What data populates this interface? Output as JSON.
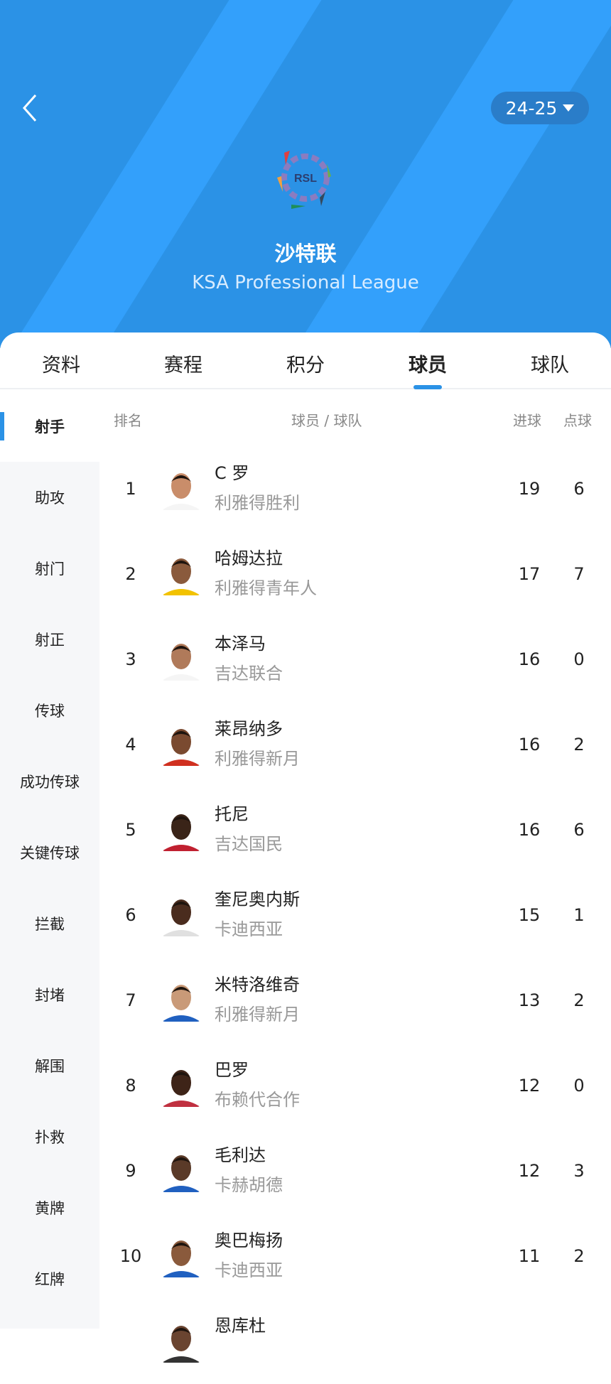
{
  "header": {
    "season": "24-25",
    "league_cn": "沙特联",
    "league_en": "KSA Professional League",
    "logo_text": "RSL"
  },
  "tabs": [
    "资料",
    "赛程",
    "积分",
    "球员",
    "球队"
  ],
  "active_tab": 3,
  "sidebar": [
    "射手",
    "助攻",
    "射门",
    "射正",
    "传球",
    "成功传球",
    "关键传球",
    "拦截",
    "封堵",
    "解围",
    "扑救",
    "黄牌",
    "红牌"
  ],
  "columns": {
    "rank": "排名",
    "player_team": "球员 / 球队",
    "goals": "进球",
    "penalties": "点球"
  },
  "rows": [
    {
      "rank": "1",
      "name": "C 罗",
      "team": "利雅得胜利",
      "goals": "19",
      "penalties": "6"
    },
    {
      "rank": "2",
      "name": "哈姆达拉",
      "team": "利雅得青年人",
      "goals": "17",
      "penalties": "7"
    },
    {
      "rank": "3",
      "name": "本泽马",
      "team": "吉达联合",
      "goals": "16",
      "penalties": "0"
    },
    {
      "rank": "4",
      "name": "莱昂纳多",
      "team": "利雅得新月",
      "goals": "16",
      "penalties": "2"
    },
    {
      "rank": "5",
      "name": "托尼",
      "team": "吉达国民",
      "goals": "16",
      "penalties": "6"
    },
    {
      "rank": "6",
      "name": "奎尼奥内斯",
      "team": "卡迪西亚",
      "goals": "15",
      "penalties": "1"
    },
    {
      "rank": "7",
      "name": "米特洛维奇",
      "team": "利雅得新月",
      "goals": "13",
      "penalties": "2"
    },
    {
      "rank": "8",
      "name": "巴罗",
      "team": "布赖代合作",
      "goals": "12",
      "penalties": "0"
    },
    {
      "rank": "9",
      "name": "毛利达",
      "team": "卡赫胡德",
      "goals": "12",
      "penalties": "3"
    },
    {
      "rank": "10",
      "name": "奥巴梅扬",
      "team": "卡迪西亚",
      "goals": "11",
      "penalties": "2"
    },
    {
      "rank": "",
      "name": "恩库杜",
      "team": "",
      "goals": "",
      "penalties": ""
    }
  ],
  "colors": {
    "header_bg": "#2b92e6",
    "accent": "#2b92e6"
  }
}
